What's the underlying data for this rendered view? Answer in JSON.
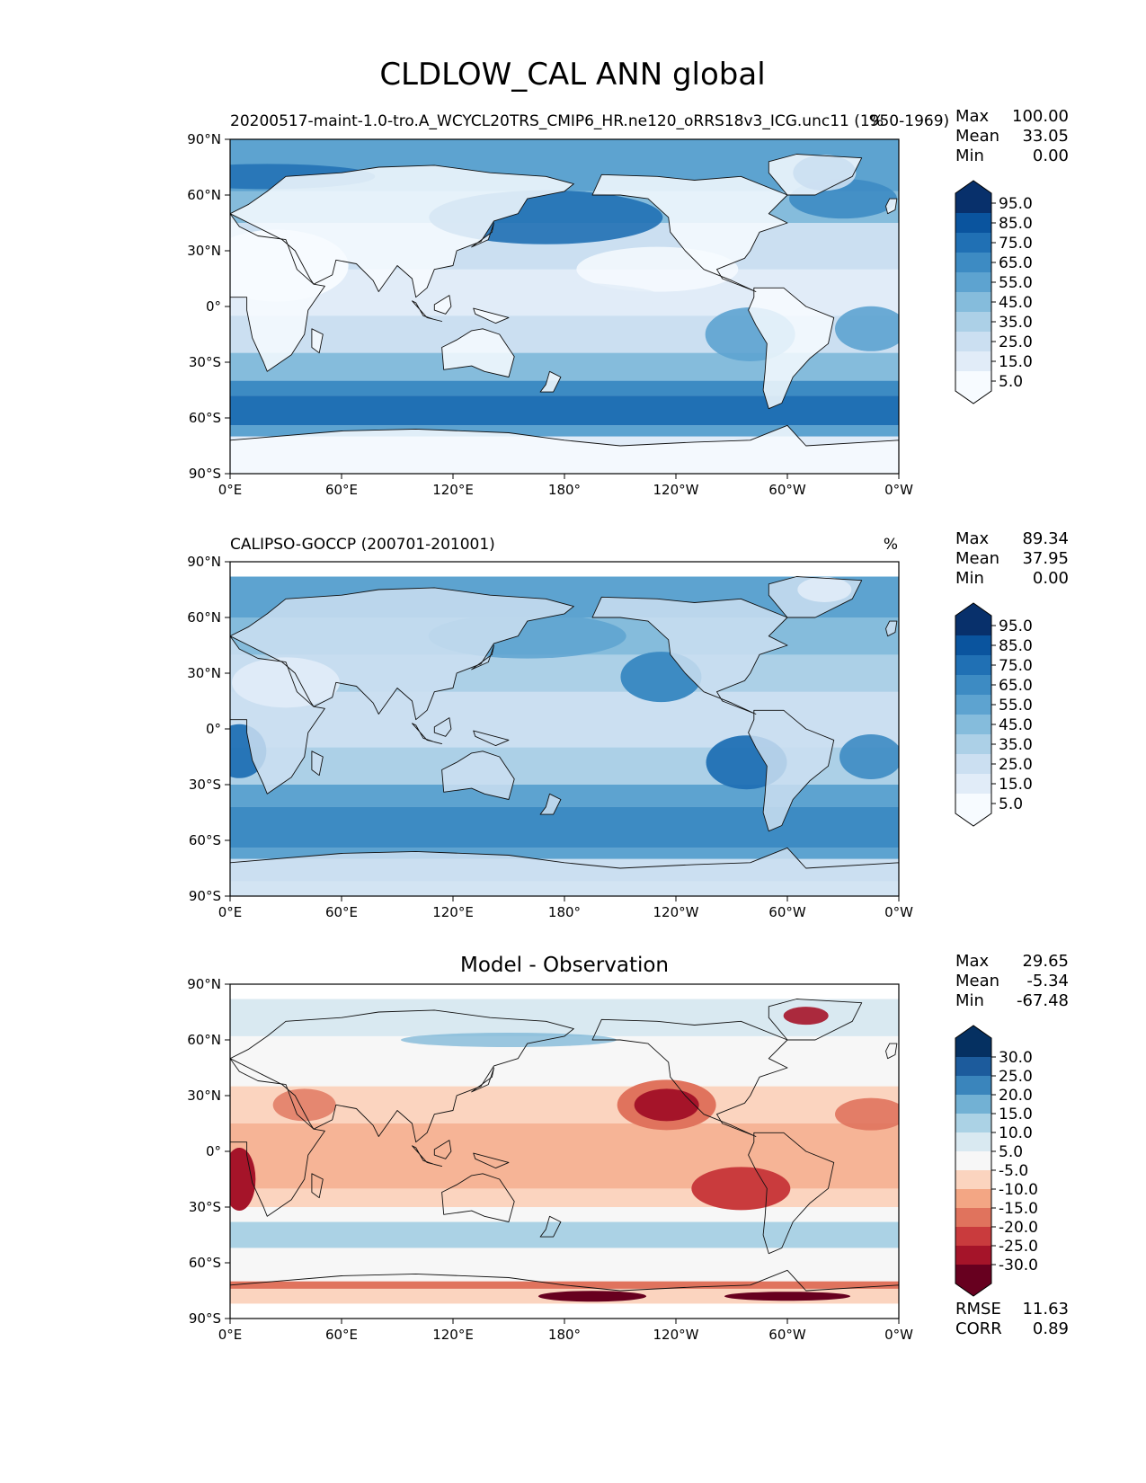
{
  "figure": {
    "title": "CLDLOW_CAL ANN global"
  },
  "chart_data": [
    {
      "type": "heatmap",
      "panel": "model",
      "title_left": "20200517-maint-1.0-tro.A_WCYCL20TRS_CMIP6_HR.ne120_oRRS18v3_ICG.unc11 (1950-1969)",
      "units": "%",
      "x_ticks": [
        "0°E",
        "60°E",
        "120°E",
        "180°",
        "120°W",
        "60°W",
        "0°W"
      ],
      "y_ticks": [
        "90°N",
        "60°N",
        "30°N",
        "0°",
        "30°S",
        "60°S",
        "90°S"
      ],
      "xlim": [
        0,
        360
      ],
      "ylim": [
        -90,
        90
      ],
      "stats": {
        "max_label": "Max",
        "max": "100.00",
        "mean_label": "Mean",
        "mean": "33.05",
        "min_label": "Min",
        "min": "0.00"
      },
      "colorbar": {
        "levels": [
          "5.0",
          "15.0",
          "25.0",
          "35.0",
          "45.0",
          "55.0",
          "65.0",
          "75.0",
          "85.0",
          "95.0"
        ],
        "colors": [
          "#f7fbff",
          "#e1ecf8",
          "#cbdff1",
          "#acd0e7",
          "#85bcdc",
          "#5da3d0",
          "#3d8bc3",
          "#2070b4",
          "#0a549e",
          "#08306b"
        ]
      },
      "features": [
        {
          "name": "southern-ocean-belt",
          "lat": -55,
          "value": 75
        },
        {
          "name": "north-pacific",
          "lat": 48,
          "lon": 170,
          "value": 72
        },
        {
          "name": "north-atlantic",
          "lat": 58,
          "lon": 330,
          "value": 65
        },
        {
          "name": "se-pacific-stratocumulus",
          "lat": -15,
          "lon": 280,
          "value": 55
        },
        {
          "name": "sahara-low",
          "lat": 22,
          "lon": 15,
          "value": 5
        },
        {
          "name": "antarctica-low",
          "lat": -82,
          "value": 10
        }
      ]
    },
    {
      "type": "heatmap",
      "panel": "observation",
      "title_left": "CALIPSO-GOCCP (200701-201001)",
      "units": "%",
      "x_ticks": [
        "0°E",
        "60°E",
        "120°E",
        "180°",
        "120°W",
        "60°W",
        "0°W"
      ],
      "y_ticks": [
        "90°N",
        "60°N",
        "30°N",
        "0°",
        "30°S",
        "60°S",
        "90°S"
      ],
      "xlim": [
        0,
        360
      ],
      "ylim": [
        -90,
        90
      ],
      "data_lat_range": [
        -82,
        82
      ],
      "stats": {
        "max_label": "Max",
        "max": "89.34",
        "mean_label": "Mean",
        "mean": "37.95",
        "min_label": "Min",
        "min": "0.00"
      },
      "colorbar": {
        "levels": [
          "5.0",
          "15.0",
          "25.0",
          "35.0",
          "45.0",
          "55.0",
          "65.0",
          "75.0",
          "85.0",
          "95.0"
        ],
        "colors": [
          "#f7fbff",
          "#e1ecf8",
          "#cbdff1",
          "#acd0e7",
          "#85bcdc",
          "#5da3d0",
          "#3d8bc3",
          "#2070b4",
          "#0a549e",
          "#08306b"
        ]
      },
      "features": [
        {
          "name": "southern-ocean-belt",
          "lat": -55,
          "value": 65
        },
        {
          "name": "ne-pacific-stratocumulus",
          "lat": 28,
          "lon": 230,
          "value": 60
        },
        {
          "name": "se-pacific-stratocumulus",
          "lat": -20,
          "lon": 280,
          "value": 65
        },
        {
          "name": "se-atlantic-stratocumulus",
          "lat": -15,
          "lon": 5,
          "value": 60
        }
      ]
    },
    {
      "type": "heatmap",
      "panel": "difference",
      "title_center": "Model - Observation",
      "x_ticks": [
        "0°E",
        "60°E",
        "120°E",
        "180°",
        "120°W",
        "60°W",
        "0°W"
      ],
      "y_ticks": [
        "90°N",
        "60°N",
        "30°N",
        "0°",
        "30°S",
        "60°S",
        "90°S"
      ],
      "xlim": [
        0,
        360
      ],
      "ylim": [
        -90,
        90
      ],
      "data_lat_range": [
        -82,
        82
      ],
      "stats": {
        "max_label": "Max",
        "max": "29.65",
        "mean_label": "Mean",
        "mean": "-5.34",
        "min_label": "Min",
        "min": "-67.48"
      },
      "metrics": {
        "rmse_label": "RMSE",
        "rmse": "11.63",
        "corr_label": "CORR",
        "corr": "0.89"
      },
      "colorbar": {
        "levels": [
          "-30.0",
          "-25.0",
          "-20.0",
          "-15.0",
          "-10.0",
          "-5.0",
          "5.0",
          "10.0",
          "15.0",
          "20.0",
          "25.0",
          "30.0"
        ],
        "colors": [
          "#67001f",
          "#a51429",
          "#c93b3d",
          "#e0735d",
          "#f3a684",
          "#fbd4bf",
          "#f7f7f7",
          "#d9e9f1",
          "#abd2e5",
          "#72b1d4",
          "#3a85bc",
          "#1c5b9c",
          "#053061"
        ]
      },
      "features": [
        {
          "name": "ne-pacific-deficit",
          "lat": 25,
          "lon": 235,
          "value": -30
        },
        {
          "name": "se-pacific-deficit",
          "lat": -20,
          "lon": 270,
          "value": -25
        },
        {
          "name": "se-atlantic-deficit",
          "lat": -15,
          "lon": 5,
          "value": -28
        },
        {
          "name": "southern-ocean-excess",
          "lat": -45,
          "value": 10
        },
        {
          "name": "antarctic-coast-deficit",
          "lat": -78,
          "value": -25
        }
      ]
    }
  ]
}
